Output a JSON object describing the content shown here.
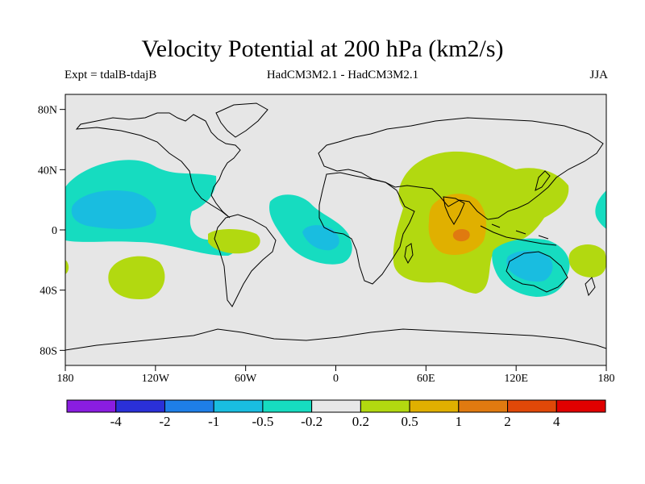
{
  "header": {
    "title": "Velocity Potential at 200 hPa (km2/s)",
    "left_subtitle": "Expt = tdalB-tdajB",
    "center_subtitle": "HadCM3M2.1 - HadCM3M2.1",
    "right_subtitle": "JJA"
  },
  "axes": {
    "lat_labels": [
      {
        "lat": 80,
        "text": "80N"
      },
      {
        "lat": 40,
        "text": "40N"
      },
      {
        "lat": 0,
        "text": "0"
      },
      {
        "lat": -40,
        "text": "40S"
      },
      {
        "lat": -80,
        "text": "80S"
      }
    ],
    "lon_labels": [
      {
        "lon": -180,
        "text": "180"
      },
      {
        "lon": -120,
        "text": "120W"
      },
      {
        "lon": -60,
        "text": "60W"
      },
      {
        "lon": 0,
        "text": "0"
      },
      {
        "lon": 60,
        "text": "60E"
      },
      {
        "lon": 120,
        "text": "120E"
      },
      {
        "lon": 180,
        "text": "180"
      }
    ],
    "lat_range": [
      -90,
      90
    ],
    "lon_range": [
      -180,
      180
    ]
  },
  "colorbar": {
    "colors": [
      "#8a1de0",
      "#2a30d8",
      "#1e7ee8",
      "#19bde0",
      "#16dcc0",
      "#e8e8e8",
      "#b2d910",
      "#e0b000",
      "#e07a10",
      "#e04808",
      "#e00000"
    ],
    "labels": [
      "-4",
      "-2",
      "-1",
      "-0.5",
      "-0.2",
      "0.2",
      "0.5",
      "1",
      "2",
      "4"
    ]
  },
  "colors": {
    "background": "#e6e6e6",
    "coast": "#000000"
  }
}
